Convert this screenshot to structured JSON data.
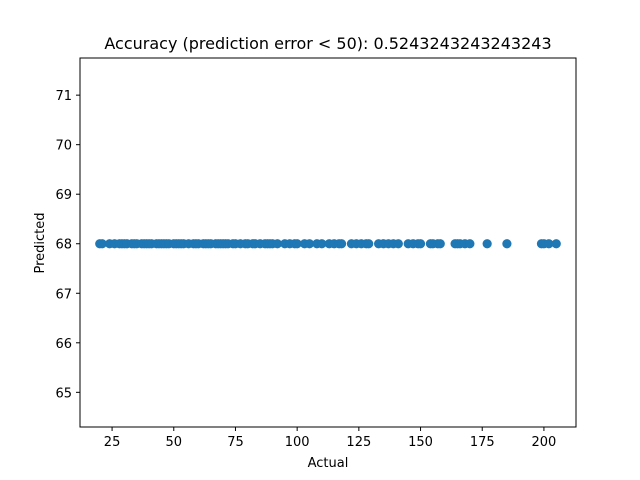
{
  "chart_data": {
    "type": "scatter",
    "title": "Accuracy (prediction error < 50): 0.5243243243243243",
    "xlabel": "Actual",
    "ylabel": "Predicted",
    "xlim": [
      12,
      213
    ],
    "ylim": [
      64.3,
      71.75
    ],
    "xticks": [
      25,
      50,
      75,
      100,
      125,
      150,
      175,
      200
    ],
    "yticks": [
      65,
      66,
      67,
      68,
      69,
      70,
      71
    ],
    "grid": false,
    "marker_color": "#1f77b4",
    "series": [
      {
        "x": [
          20,
          21,
          24,
          26,
          28,
          29,
          30,
          31,
          33,
          34,
          35,
          37,
          38,
          39,
          40,
          41,
          43,
          44,
          45,
          46,
          47,
          48,
          50,
          51,
          52,
          53,
          54,
          56,
          58,
          59,
          60,
          62,
          63,
          64,
          65,
          67,
          68,
          69,
          70,
          71,
          72,
          74,
          75,
          77,
          79,
          80,
          82,
          83,
          85,
          87,
          88,
          89,
          90,
          92,
          95,
          97,
          99,
          100,
          103,
          105,
          108,
          110,
          113,
          115,
          117,
          118,
          122,
          124,
          126,
          128,
          129,
          133,
          135,
          137,
          139,
          141,
          145,
          147,
          149,
          150,
          154,
          155,
          157,
          158,
          164,
          165,
          166,
          168,
          170,
          177,
          185,
          199,
          200,
          202,
          205
        ],
        "y": [
          68,
          68,
          68,
          68,
          68,
          68,
          68,
          68,
          68,
          68,
          68,
          68,
          68,
          68,
          68,
          68,
          68,
          68,
          68,
          68,
          68,
          68,
          68,
          68,
          68,
          68,
          68,
          68,
          68,
          68,
          68,
          68,
          68,
          68,
          68,
          68,
          68,
          68,
          68,
          68,
          68,
          68,
          68,
          68,
          68,
          68,
          68,
          68,
          68,
          68,
          68,
          68,
          68,
          68,
          68,
          68,
          68,
          68,
          68,
          68,
          68,
          68,
          68,
          68,
          68,
          68,
          68,
          68,
          68,
          68,
          68,
          68,
          68,
          68,
          68,
          68,
          68,
          68,
          68,
          68,
          68,
          68,
          68,
          68,
          68,
          68,
          68,
          68,
          68,
          68,
          68,
          68,
          68,
          68,
          68
        ]
      }
    ]
  }
}
